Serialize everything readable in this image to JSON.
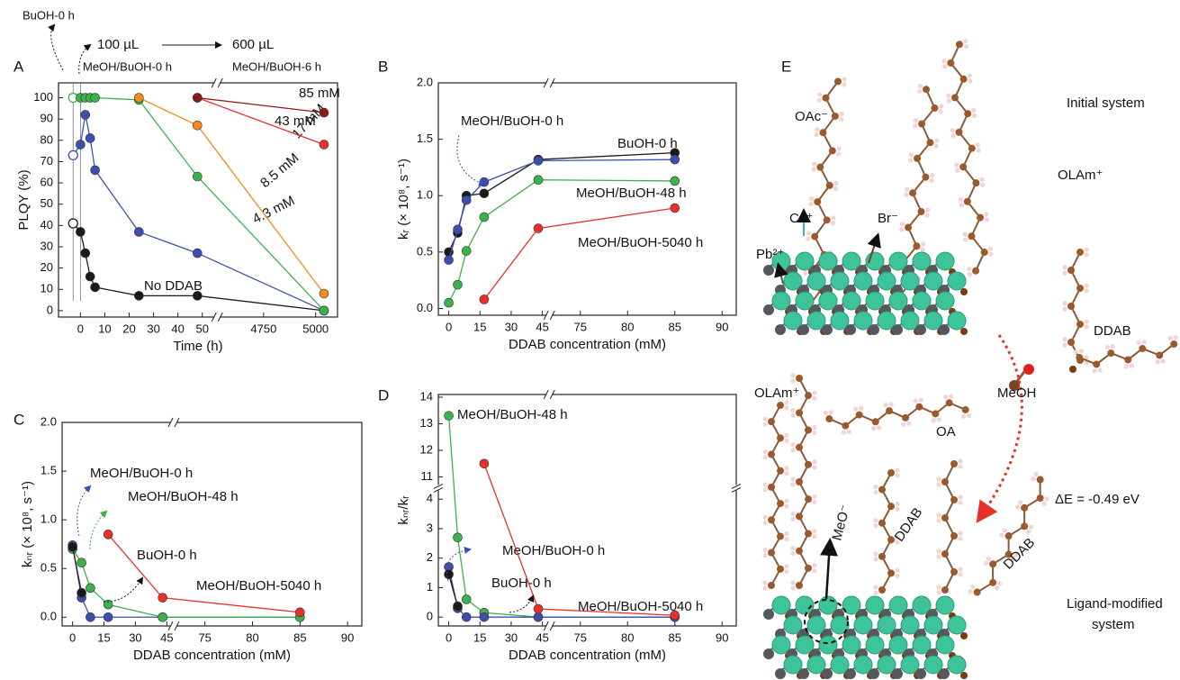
{
  "chart_data": [
    {
      "type": "line",
      "panel": "A",
      "xlabel": "Time (h)",
      "ylabel": "PLQY (%)",
      "xlim": [
        [
          -9,
          55
        ],
        [
          4540,
          5105
        ]
      ],
      "xticks": [
        0,
        10,
        20,
        30,
        40,
        50,
        4750,
        5000
      ],
      "ylim": [
        -3,
        107
      ],
      "yticks": [
        0,
        10,
        20,
        30,
        40,
        50,
        60,
        70,
        80,
        90,
        100
      ],
      "vlines": [
        -3,
        0
      ],
      "annotations": [
        "BuOH-0 h",
        "100 µL",
        "600 µL",
        "MeOH/BuOH-0 h",
        "MeOH/BuOH-6 h"
      ],
      "series": [
        {
          "name": "No DDAB",
          "color": "#1a1a1a",
          "open_first": true,
          "x": [
            -3,
            0,
            2,
            4,
            6,
            24,
            48,
            5040
          ],
          "values": [
            41,
            37,
            27,
            16,
            11,
            7,
            7,
            0
          ]
        },
        {
          "name": "4.3 mM",
          "color": "#3c4fb0",
          "open_first": true,
          "x": [
            -3,
            0,
            2,
            4,
            6,
            24,
            48,
            5040
          ],
          "values": [
            73,
            78,
            92,
            81,
            66,
            37,
            27,
            0
          ]
        },
        {
          "name": "8.5 mM",
          "color": "#3cb34a",
          "open_first": true,
          "x": [
            -3,
            0,
            2,
            4,
            6,
            24,
            48,
            5040
          ],
          "values": [
            100,
            100,
            100,
            100,
            100,
            99,
            63,
            0
          ]
        },
        {
          "name": "17 mM",
          "color": "#f28c1c",
          "x": [
            24,
            48,
            5040
          ],
          "values": [
            100,
            87,
            8
          ]
        },
        {
          "name": "43 mM",
          "color": "#e8302a",
          "x": [
            48,
            5040
          ],
          "values": [
            100,
            78
          ]
        },
        {
          "name": "85 mM",
          "color": "#8b1a1a",
          "x": [
            48,
            5040
          ],
          "values": [
            100,
            93
          ]
        }
      ]
    },
    {
      "type": "line",
      "panel": "B",
      "xlabel": "DDAB concentration (mM)",
      "ylabel": "kᵣ (× 10⁸, s⁻¹)",
      "xlim": [
        [
          -5,
          47
        ],
        [
          72,
          91.5
        ]
      ],
      "xticks": [
        0,
        15,
        30,
        45,
        75,
        80,
        85,
        90
      ],
      "ylim": [
        -0.06,
        2.0
      ],
      "yticks": [
        {
          "value": 0,
          "label": "0.0"
        },
        {
          "value": 0.5,
          "label": "0.5"
        },
        {
          "value": 1,
          "label": "1.0"
        },
        {
          "value": 1.5,
          "label": "1.5"
        },
        {
          "value": 2,
          "label": "2.0"
        }
      ],
      "series": [
        {
          "name": "BuOH-0 h",
          "color": "#1a1a1a",
          "x": [
            0,
            4.3,
            8.5,
            17,
            43,
            85
          ],
          "values": [
            0.5,
            0.67,
            1.0,
            1.02,
            1.32,
            1.38
          ]
        },
        {
          "name": "MeOH/BuOH-0 h",
          "color": "#3c4fb0",
          "x": [
            0,
            4.3,
            8.5,
            17,
            43,
            85
          ],
          "values": [
            0.43,
            0.7,
            0.96,
            1.12,
            1.31,
            1.32
          ]
        },
        {
          "name": "MeOH/BuOH-48 h",
          "color": "#3cb34a",
          "x": [
            0,
            4.3,
            8.5,
            17,
            43,
            85
          ],
          "values": [
            0.05,
            0.21,
            0.51,
            0.81,
            1.14,
            1.13
          ]
        },
        {
          "name": "MeOH/BuOH-5040 h",
          "color": "#e8302a",
          "x": [
            17,
            43,
            85
          ],
          "values": [
            0.08,
            0.71,
            0.89
          ]
        }
      ]
    },
    {
      "type": "line",
      "panel": "C",
      "xlabel": "DDAB concentration (mM)",
      "ylabel": "kₙᵣ (× 10⁸, s⁻¹)",
      "xlim": [
        [
          -5,
          47
        ],
        [
          72,
          91.5
        ]
      ],
      "xticks": [
        0,
        15,
        30,
        45,
        75,
        80,
        85,
        90
      ],
      "ylim": [
        -0.09,
        2.0
      ],
      "yticks": [
        {
          "value": 0,
          "label": "0.0"
        },
        {
          "value": 0.5,
          "label": "0.5"
        },
        {
          "value": 1,
          "label": "1.0"
        },
        {
          "value": 1.5,
          "label": "1.5"
        },
        {
          "value": 2,
          "label": "2.0"
        }
      ],
      "series": [
        {
          "name": "MeOH/BuOH-0 h",
          "color": "#3c4fb0",
          "x": [
            0,
            4.3,
            8.5,
            17,
            43,
            85
          ],
          "values": [
            0.74,
            0.2,
            0,
            0,
            0,
            0
          ]
        },
        {
          "name": "MeOH/BuOH-48 h",
          "color": "#3cb34a",
          "x": [
            0,
            4.3,
            8.5,
            17,
            43,
            85
          ],
          "values": [
            0.7,
            0.56,
            0.3,
            0.13,
            0,
            0
          ]
        },
        {
          "name": "BuOH-0 h",
          "color": "#1a1a1a",
          "x": [
            0,
            4.3
          ],
          "values": [
            0.72,
            0.25
          ]
        },
        {
          "name": "MeOH/BuOH-5040 h",
          "color": "#e8302a",
          "x": [
            17,
            43,
            85
          ],
          "values": [
            0.85,
            0.2,
            0.05
          ]
        }
      ]
    },
    {
      "type": "line",
      "panel": "D",
      "xlabel": "DDAB concentration (mM)",
      "ylabel": "kₙᵣ/kᵣ",
      "xlim": [
        [
          -5,
          47
        ],
        [
          72,
          91.5
        ]
      ],
      "xticks": [
        0,
        15,
        30,
        45,
        75,
        80,
        85,
        90
      ],
      "ylim": [
        [
          -0.3,
          4.3
        ],
        [
          10.7,
          14.1
        ]
      ],
      "yticks": [
        0,
        1,
        2,
        3,
        4,
        11,
        12,
        13,
        14
      ],
      "series": [
        {
          "name": "MeOH/BuOH-48 h",
          "color": "#3cb34a",
          "x": [
            0,
            4.3,
            8.5,
            17,
            43,
            85
          ],
          "values": [
            13.3,
            2.7,
            0.6,
            0.15,
            0,
            0
          ]
        },
        {
          "name": "MeOH/BuOH-0 h",
          "color": "#3c4fb0",
          "x": [
            0,
            4.3,
            8.5,
            17,
            43,
            85
          ],
          "values": [
            1.7,
            0.3,
            0,
            0,
            0,
            0
          ]
        },
        {
          "name": "BuOH-0 h",
          "color": "#1a1a1a",
          "x": [
            0,
            4.3
          ],
          "values": [
            1.45,
            0.37
          ]
        },
        {
          "name": "MeOH/BuOH-5040 h",
          "color": "#e8302a",
          "x": [
            17,
            43,
            85
          ],
          "values": [
            11.5,
            0.28,
            0.06
          ]
        }
      ]
    }
  ],
  "panel_e": {
    "panel": "E",
    "initial": "Initial system",
    "oac": "OAc⁻",
    "olam_top": "OLAm⁺",
    "cs": "Cs⁺",
    "br": "Br⁻",
    "pb": "Pb²⁺",
    "ddab_top": "DDAB",
    "meoh": "MeOH",
    "oa": "OA",
    "olam_bottom": "OLAm⁺",
    "delta_e": "ΔE = -0.49 eV",
    "meo": "MeO⁻",
    "ddab_1": "DDAB",
    "ddab_2": "DDAB",
    "modified": [
      "Ligand-modified",
      "system"
    ]
  }
}
